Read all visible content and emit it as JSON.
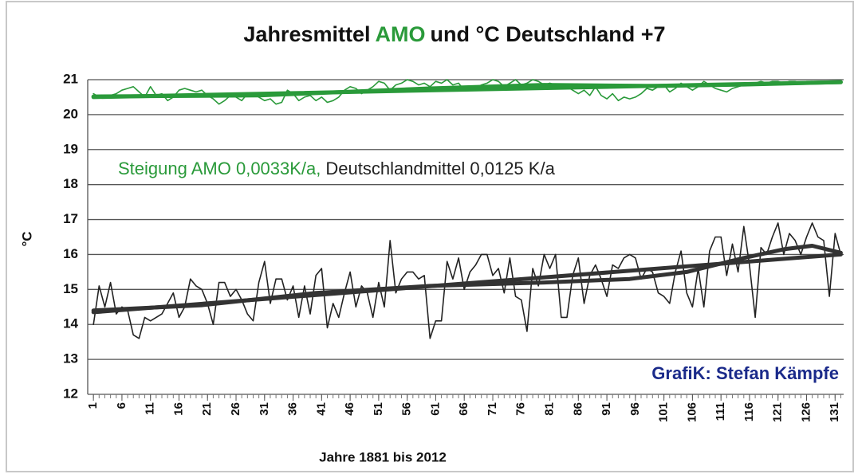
{
  "chart_data": {
    "type": "line",
    "title": [
      {
        "text": "Jahresmittel",
        "color": "#111111"
      },
      {
        "text": "AMO",
        "color": "#2a9a3a"
      },
      {
        "text": "und  °C Deutschland +7",
        "color": "#111111"
      }
    ],
    "annotation": [
      {
        "text": "Steigung AMO 0,0033K/a,",
        "color": "#2a9a3a"
      },
      {
        "text": "Deutschlandmittel 0,0125 K/a",
        "color": "#222222"
      }
    ],
    "credit": "GrafiK: Stefan Kämpfe",
    "x_label": "Jahre 1881 bis 2012",
    "y_label": "°C",
    "xlim": [
      0,
      132.5
    ],
    "xticks": [
      1,
      6,
      11,
      16,
      21,
      26,
      31,
      36,
      41,
      46,
      51,
      56,
      61,
      66,
      71,
      76,
      81,
      86,
      91,
      96,
      101,
      106,
      111,
      116,
      121,
      126,
      131
    ],
    "ylim": [
      12,
      21
    ],
    "yticks": [
      12,
      13,
      14,
      15,
      16,
      17,
      18,
      19,
      20,
      21
    ],
    "grid": true,
    "x": [
      1,
      2,
      3,
      4,
      5,
      6,
      7,
      8,
      9,
      10,
      11,
      12,
      13,
      14,
      15,
      16,
      17,
      18,
      19,
      20,
      21,
      22,
      23,
      24,
      25,
      26,
      27,
      28,
      29,
      30,
      31,
      32,
      33,
      34,
      35,
      36,
      37,
      38,
      39,
      40,
      41,
      42,
      43,
      44,
      45,
      46,
      47,
      48,
      49,
      50,
      51,
      52,
      53,
      54,
      55,
      56,
      57,
      58,
      59,
      60,
      61,
      62,
      63,
      64,
      65,
      66,
      67,
      68,
      69,
      70,
      71,
      72,
      73,
      74,
      75,
      76,
      77,
      78,
      79,
      80,
      81,
      82,
      83,
      84,
      85,
      86,
      87,
      88,
      89,
      90,
      91,
      92,
      93,
      94,
      95,
      96,
      97,
      98,
      99,
      100,
      101,
      102,
      103,
      104,
      105,
      106,
      107,
      108,
      109,
      110,
      111,
      112,
      113,
      114,
      115,
      116,
      117,
      118,
      119,
      120,
      121,
      122,
      123,
      124,
      125,
      126,
      127,
      128,
      129,
      130,
      131,
      132
    ],
    "series": [
      {
        "color": "#2a9a3a",
        "values": [
          20.6,
          20.5,
          20.5,
          20.55,
          20.6,
          20.7,
          20.75,
          20.8,
          20.65,
          20.5,
          20.8,
          20.55,
          20.6,
          20.4,
          20.5,
          20.7,
          20.75,
          20.7,
          20.65,
          20.7,
          20.55,
          20.45,
          20.3,
          20.4,
          20.55,
          20.5,
          20.4,
          20.6,
          20.6,
          20.5,
          20.4,
          20.45,
          20.3,
          20.35,
          20.7,
          20.6,
          20.4,
          20.5,
          20.55,
          20.4,
          20.5,
          20.35,
          20.4,
          20.5,
          20.7,
          20.8,
          20.75,
          20.6,
          20.7,
          20.8,
          20.95,
          20.9,
          20.7,
          20.85,
          20.9,
          21.0,
          20.95,
          20.85,
          20.9,
          20.8,
          20.95,
          20.9,
          21.0,
          20.85,
          20.9,
          20.7,
          20.8,
          20.75,
          20.85,
          20.9,
          21.0,
          20.95,
          20.8,
          20.9,
          21.0,
          20.85,
          20.9,
          21.0,
          20.95,
          20.85,
          20.9,
          20.85,
          20.8,
          20.8,
          20.7,
          20.6,
          20.7,
          20.55,
          20.8,
          20.55,
          20.45,
          20.6,
          20.4,
          20.5,
          20.45,
          20.5,
          20.6,
          20.75,
          20.7,
          20.8,
          20.85,
          20.65,
          20.75,
          20.9,
          20.8,
          20.7,
          20.8,
          20.95,
          20.85,
          20.75,
          20.7,
          20.65,
          20.75,
          20.8,
          20.85,
          20.9,
          20.9,
          20.95,
          20.9,
          20.95,
          20.95,
          20.9,
          20.95,
          20.95,
          20.9,
          20.95,
          20.95,
          20.9,
          20.95,
          20.9,
          20.95,
          20.9
        ]
      },
      {
        "color": "#2a9a3a",
        "x": [
          1,
          132
        ],
        "values": [
          20.5,
          20.93
        ]
      },
      {
        "color": "#2a9a3a",
        "x": [
          1,
          30,
          60,
          80,
          100,
          115,
          132
        ],
        "values": [
          20.52,
          20.55,
          20.75,
          20.85,
          20.82,
          20.86,
          20.93
        ]
      },
      {
        "color": "#222222",
        "values": [
          14.0,
          15.1,
          14.5,
          15.2,
          14.3,
          14.5,
          14.4,
          13.7,
          13.6,
          14.2,
          14.1,
          14.2,
          14.3,
          14.6,
          14.9,
          14.2,
          14.5,
          15.3,
          15.1,
          15.0,
          14.6,
          14.0,
          15.2,
          15.2,
          14.8,
          15.0,
          14.7,
          14.3,
          14.1,
          15.2,
          15.8,
          14.6,
          15.3,
          15.3,
          14.7,
          15.1,
          14.2,
          15.1,
          14.3,
          15.4,
          15.6,
          13.9,
          14.6,
          14.2,
          14.9,
          15.5,
          14.5,
          15.1,
          14.9,
          14.2,
          15.2,
          14.5,
          16.4,
          14.9,
          15.3,
          15.5,
          15.5,
          15.3,
          15.4,
          13.6,
          14.1,
          14.1,
          15.8,
          15.3,
          15.9,
          15.0,
          15.5,
          15.7,
          16.0,
          16.0,
          15.4,
          15.6,
          14.9,
          15.9,
          14.8,
          14.7,
          13.8,
          15.6,
          15.1,
          16.0,
          15.6,
          16.0,
          14.2,
          14.2,
          15.4,
          15.9,
          14.6,
          15.4,
          15.7,
          15.3,
          14.8,
          15.7,
          15.6,
          15.9,
          16.0,
          15.9,
          15.3,
          15.6,
          15.5,
          14.9,
          14.8,
          14.6,
          15.5,
          16.1,
          14.9,
          14.5,
          15.6,
          14.5,
          16.1,
          16.5,
          16.5,
          15.4,
          16.3,
          15.5,
          16.8,
          15.7,
          14.2,
          16.2,
          16.0,
          16.5,
          16.9,
          16.0,
          16.6,
          16.4,
          16.0,
          16.5,
          16.9,
          16.5,
          16.4,
          14.8,
          16.6,
          16.0
        ]
      },
      {
        "color": "#333333",
        "x": [
          1,
          132
        ],
        "values": [
          14.35,
          16.0
        ]
      },
      {
        "color": "#333333",
        "x": [
          1,
          20,
          40,
          60,
          80,
          95,
          105,
          115,
          122,
          127,
          132
        ],
        "values": [
          14.4,
          14.55,
          14.9,
          15.1,
          15.2,
          15.3,
          15.5,
          15.9,
          16.15,
          16.25,
          16.05
        ]
      }
    ]
  }
}
